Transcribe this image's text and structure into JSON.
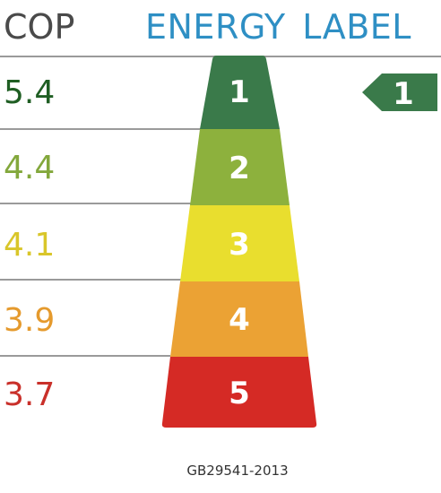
{
  "header": {
    "cop_heading": "COP",
    "title": "ENERGY LABEL"
  },
  "grades": [
    {
      "grade": "1",
      "cop": "5.4",
      "color": "#3a7a4a",
      "cop_color": "#1f5e23"
    },
    {
      "grade": "2",
      "cop": "4.4",
      "color": "#8db13d",
      "cop_color": "#83a83c"
    },
    {
      "grade": "3",
      "cop": "4.1",
      "color": "#e9de2e",
      "cop_color": "#d9c62a"
    },
    {
      "grade": "4",
      "cop": "3.9",
      "color": "#eba234",
      "cop_color": "#e59a2d"
    },
    {
      "grade": "5",
      "cop": "3.7",
      "color": "#d52a25",
      "cop_color": "#c9302a"
    }
  ],
  "indicator": {
    "grade": "1",
    "color": "#3a7a4a"
  },
  "footer": {
    "standard": "GB29541-2013"
  }
}
